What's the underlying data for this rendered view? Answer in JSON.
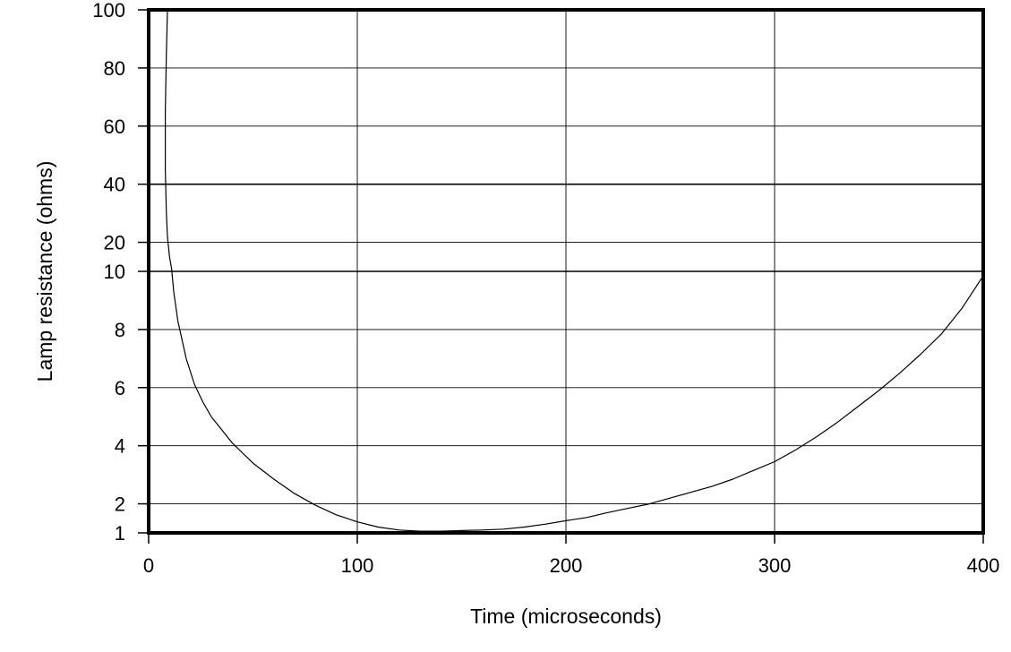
{
  "chart_data": {
    "type": "line",
    "xlabel": "Time (microseconds)",
    "ylabel": "Lamp resistance (ohms)",
    "xlim": [
      0,
      400
    ],
    "ylim_piecewise": "1–10 ohms on lower scale (1,2,4,6,8,10); 10–100 ohms on upper scale (10,20,40,60,80,100)",
    "x_ticks": [
      "0",
      "100",
      "200",
      "300",
      "400"
    ],
    "y_ticks": [
      "1",
      "2",
      "4",
      "6",
      "8",
      "10",
      "20",
      "40",
      "60",
      "80",
      "100"
    ],
    "y_tick_values": [
      1,
      2,
      4,
      6,
      8,
      10,
      20,
      40,
      60,
      80,
      100
    ],
    "grid": true,
    "series": [
      {
        "x": [
          9,
          8.5,
          8,
          8,
          8.5,
          9,
          10,
          11,
          12,
          14,
          18,
          22,
          26,
          30,
          40,
          50,
          60,
          70,
          80,
          90,
          100,
          110,
          120,
          130,
          140,
          150,
          160,
          170,
          180,
          190,
          200,
          210,
          220,
          230,
          240,
          250,
          260,
          270,
          280,
          290,
          300,
          310,
          320,
          330,
          340,
          350,
          360,
          370,
          380,
          390,
          400
        ],
        "y": [
          100,
          85,
          65,
          45,
          30,
          22,
          15,
          11,
          9.3,
          8.3,
          7,
          6.1,
          5.5,
          5.0,
          4.1,
          3.4,
          2.85,
          2.35,
          1.95,
          1.62,
          1.38,
          1.2,
          1.1,
          1.06,
          1.06,
          1.08,
          1.1,
          1.13,
          1.2,
          1.3,
          1.42,
          1.53,
          1.7,
          1.85,
          2.0,
          2.2,
          2.4,
          2.6,
          2.85,
          3.15,
          3.45,
          3.85,
          4.3,
          4.8,
          5.35,
          5.9,
          6.5,
          7.15,
          7.85,
          8.75,
          9.85
        ]
      }
    ]
  }
}
